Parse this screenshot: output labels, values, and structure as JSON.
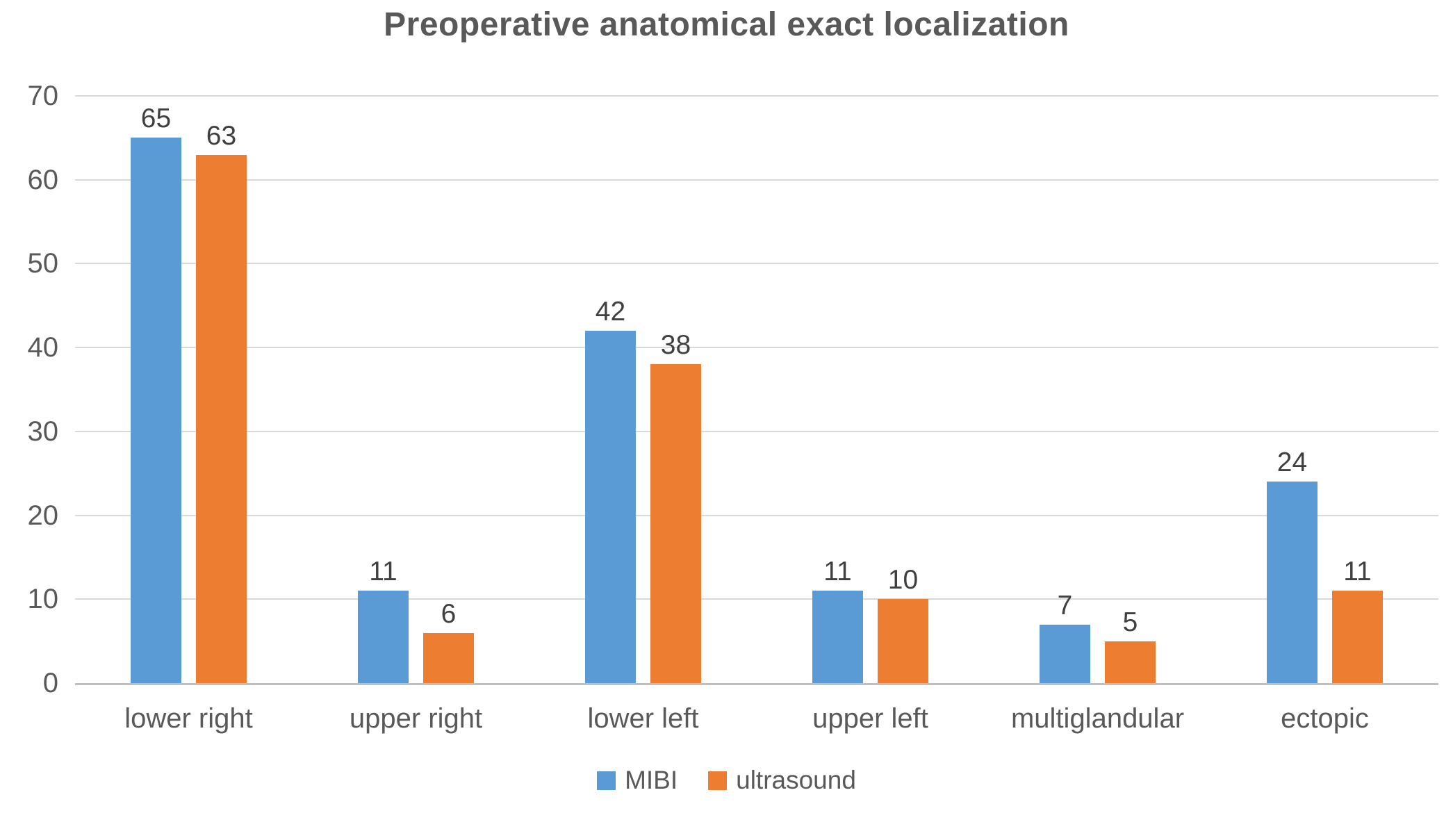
{
  "chart_data": {
    "type": "bar",
    "title": "Preoperative anatomical exact localization",
    "categories": [
      "lower right",
      "upper right",
      "lower left",
      "upper left",
      "multiglandular",
      "ectopic"
    ],
    "series": [
      {
        "name": "MIBI",
        "color": "#5B9BD5",
        "values": [
          65,
          11,
          42,
          11,
          7,
          24
        ]
      },
      {
        "name": "ultrasound",
        "color": "#ED7D31",
        "values": [
          63,
          6,
          38,
          10,
          5,
          11
        ]
      }
    ],
    "xlabel": "",
    "ylabel": "",
    "ylim": [
      0,
      70
    ],
    "ytick_step": 10,
    "yticks": [
      0,
      10,
      20,
      30,
      40,
      50,
      60,
      70
    ],
    "grid": true,
    "legend_position": "bottom-center",
    "value_labels": true
  },
  "style": {
    "background": "#FFFFFF",
    "title_color": "#595959",
    "axis_label_color": "#595959",
    "value_label_color": "#404040",
    "gridline_color": "#D9D9D9",
    "axis_line_color": "#BFBFBF"
  }
}
